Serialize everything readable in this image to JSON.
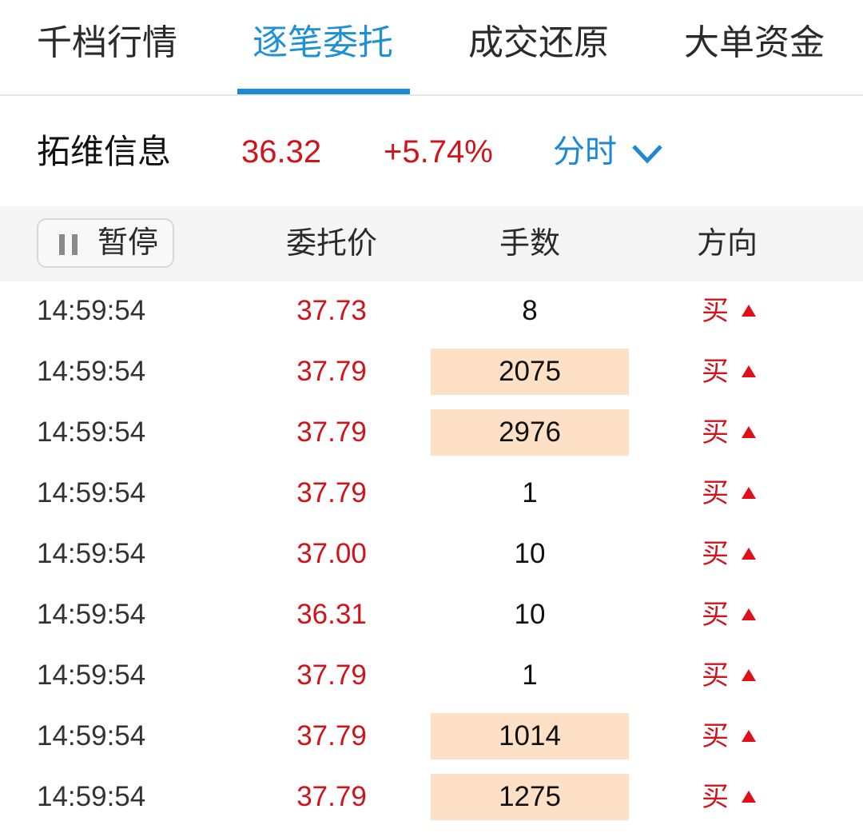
{
  "tabs": [
    {
      "label": "千档行情"
    },
    {
      "label": "逐笔委托",
      "active": true
    },
    {
      "label": "成交还原"
    },
    {
      "label": "大单资金"
    }
  ],
  "stock": {
    "name": "拓维信息",
    "price": "36.32",
    "change": "+5.74%",
    "period": "分时"
  },
  "header": {
    "pause_label": "暂停",
    "col_price": "委托价",
    "col_qty": "手数",
    "col_dir": "方向"
  },
  "colors": {
    "accent": "#1e88d2",
    "up": "#d0141c",
    "highlight": "#fde0c6"
  },
  "rows": [
    {
      "time": "14:59:54",
      "price": "37.73",
      "qty": "8",
      "big": false,
      "dir": "买"
    },
    {
      "time": "14:59:54",
      "price": "37.79",
      "qty": "2075",
      "big": true,
      "dir": "买"
    },
    {
      "time": "14:59:54",
      "price": "37.79",
      "qty": "2976",
      "big": true,
      "dir": "买"
    },
    {
      "time": "14:59:54",
      "price": "37.79",
      "qty": "1",
      "big": false,
      "dir": "买"
    },
    {
      "time": "14:59:54",
      "price": "37.00",
      "qty": "10",
      "big": false,
      "dir": "买"
    },
    {
      "time": "14:59:54",
      "price": "36.31",
      "qty": "10",
      "big": false,
      "dir": "买"
    },
    {
      "time": "14:59:54",
      "price": "37.79",
      "qty": "1",
      "big": false,
      "dir": "买"
    },
    {
      "time": "14:59:54",
      "price": "37.79",
      "qty": "1014",
      "big": true,
      "dir": "买"
    },
    {
      "time": "14:59:54",
      "price": "37.79",
      "qty": "1275",
      "big": true,
      "dir": "买"
    }
  ]
}
